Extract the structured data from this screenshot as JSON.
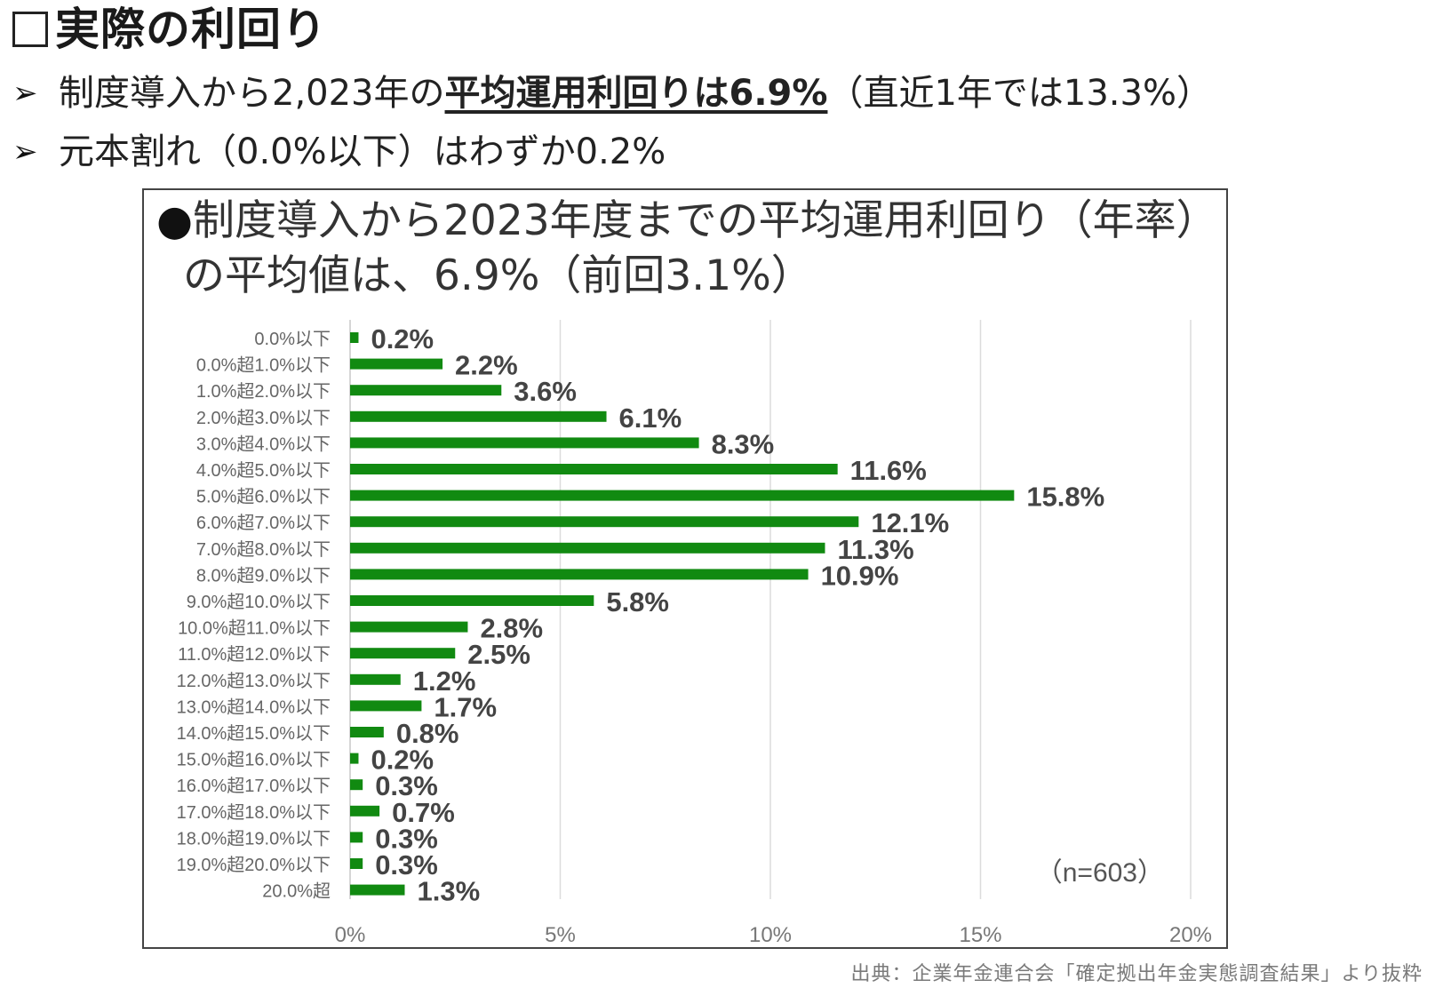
{
  "page": {
    "title": "実際の利回り",
    "bullets": [
      {
        "pre": "制度導入から2,023年の",
        "strong": "平均運用利回りは6.9%",
        "post": "（直近1年では13.3%）"
      },
      {
        "pre": "元本割れ（0.0%以下）はわずか0.2%",
        "strong": "",
        "post": ""
      }
    ],
    "source": "出典：企業年金連合会「確定拠出年金実態調査結果」より抜粋"
  },
  "chart_data": {
    "type": "bar",
    "orientation": "horizontal",
    "title_line1": "制度導入から2023年度までの平均運用利回り（年率）",
    "title_line2": "の平均値は、6.9%（前回3.1%）",
    "categories": [
      "0.0%以下",
      "0.0%超1.0%以下",
      "1.0%超2.0%以下",
      "2.0%超3.0%以下",
      "3.0%超4.0%以下",
      "4.0%超5.0%以下",
      "5.0%超6.0%以下",
      "6.0%超7.0%以下",
      "7.0%超8.0%以下",
      "8.0%超9.0%以下",
      "9.0%超10.0%以下",
      "10.0%超11.0%以下",
      "11.0%超12.0%以下",
      "12.0%超13.0%以下",
      "13.0%超14.0%以下",
      "14.0%超15.0%以下",
      "15.0%超16.0%以下",
      "16.0%超17.0%以下",
      "17.0%超18.0%以下",
      "18.0%超19.0%以下",
      "19.0%超20.0%以下",
      "20.0%超"
    ],
    "values": [
      0.2,
      2.2,
      3.6,
      6.1,
      8.3,
      11.6,
      15.8,
      12.1,
      11.3,
      10.9,
      5.8,
      2.8,
      2.5,
      1.2,
      1.7,
      0.8,
      0.2,
      0.3,
      0.7,
      0.3,
      0.3,
      1.3
    ],
    "value_suffix": "%",
    "xlim": [
      0,
      20
    ],
    "xticks": [
      "0%",
      "5%",
      "10%",
      "15%",
      "20%"
    ],
    "grid": true,
    "annotation": "（n=603）",
    "bar_color": "#118a11"
  }
}
